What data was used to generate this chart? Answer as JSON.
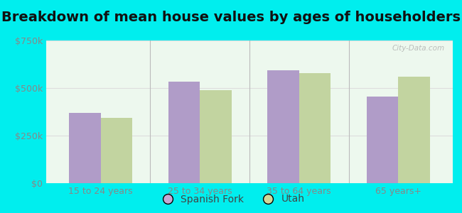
{
  "title": "Breakdown of mean house values by ages of householders",
  "categories": [
    "15 to 24 years",
    "25 to 34 years",
    "35 to 64 years",
    "65 years+"
  ],
  "spanish_fork": [
    370000,
    535000,
    595000,
    455000
  ],
  "utah": [
    345000,
    490000,
    578000,
    558000
  ],
  "spanish_fork_color": "#b09cc8",
  "utah_color": "#c2d4a0",
  "bar_width": 0.32,
  "ylim": [
    0,
    750000
  ],
  "yticks": [
    0,
    250000,
    500000,
    750000
  ],
  "ytick_labels": [
    "$0",
    "$250k",
    "$500k",
    "$750k"
  ],
  "legend_labels": [
    "Spanish Fork",
    "Utah"
  ],
  "legend_marker_colors": [
    "#c4a8d4",
    "#d0d898"
  ],
  "plot_bg_color": "#edf8ee",
  "outer_background": "#00eeee",
  "title_fontsize": 14,
  "tick_fontsize": 9,
  "legend_fontsize": 10,
  "watermark": "City-Data.com",
  "divider_color": "#bbbbbb",
  "grid_color": "#dddddd"
}
